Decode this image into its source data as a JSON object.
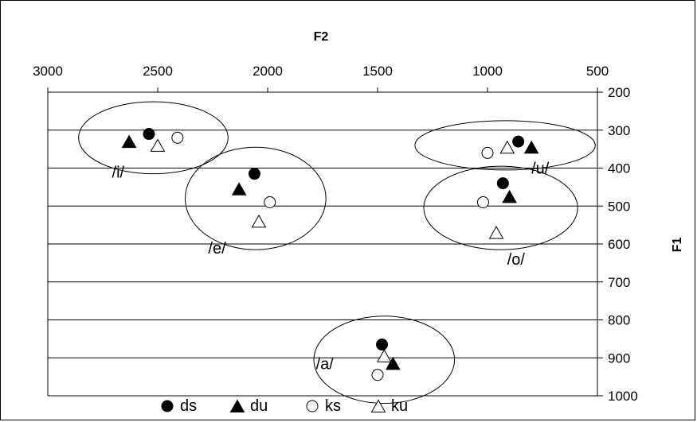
{
  "chart_data": {
    "type": "scatter",
    "title": "",
    "xlabel": "F2",
    "ylabel": "F1",
    "xlim": [
      3000,
      500
    ],
    "ylim": [
      200,
      1000
    ],
    "x_reversed": true,
    "y_reversed": true,
    "x_ticks": [
      3000,
      2500,
      2000,
      1500,
      1000,
      500
    ],
    "y_ticks": [
      200,
      300,
      400,
      500,
      600,
      700,
      800,
      900,
      1000
    ],
    "grid": "horizontal",
    "legend_position": "bottom",
    "series": [
      {
        "name": "ds",
        "marker": "filled-circle",
        "points": [
          {
            "x": 2540,
            "y": 310
          },
          {
            "x": 2060,
            "y": 415
          },
          {
            "x": 1480,
            "y": 865
          },
          {
            "x": 930,
            "y": 440
          },
          {
            "x": 860,
            "y": 330
          }
        ]
      },
      {
        "name": "du",
        "marker": "filled-triangle",
        "points": [
          {
            "x": 2630,
            "y": 330
          },
          {
            "x": 2130,
            "y": 455
          },
          {
            "x": 1430,
            "y": 915
          },
          {
            "x": 900,
            "y": 475
          },
          {
            "x": 800,
            "y": 345
          }
        ]
      },
      {
        "name": "ks",
        "marker": "open-circle",
        "points": [
          {
            "x": 2410,
            "y": 320
          },
          {
            "x": 1990,
            "y": 490
          },
          {
            "x": 1500,
            "y": 945
          },
          {
            "x": 1020,
            "y": 490
          },
          {
            "x": 1000,
            "y": 360
          }
        ]
      },
      {
        "name": "ku",
        "marker": "open-triangle",
        "points": [
          {
            "x": 2500,
            "y": 340
          },
          {
            "x": 2040,
            "y": 540
          },
          {
            "x": 1470,
            "y": 895
          },
          {
            "x": 960,
            "y": 570
          },
          {
            "x": 910,
            "y": 345
          }
        ]
      }
    ],
    "annotations": [
      {
        "text": "/i/",
        "x": 2680,
        "y": 410
      },
      {
        "text": "/e/",
        "x": 2230,
        "y": 610
      },
      {
        "text": "/a/",
        "x": 1740,
        "y": 915
      },
      {
        "text": "/o/",
        "x": 870,
        "y": 640
      },
      {
        "text": "/u/",
        "x": 760,
        "y": 400
      }
    ],
    "groups": [
      {
        "label": "/i/",
        "cx": 2520,
        "cy": 320,
        "rx": 340,
        "ry": 95
      },
      {
        "label": "/e/",
        "cx": 2055,
        "cy": 480,
        "rx": 320,
        "ry": 135
      },
      {
        "label": "/a/",
        "cx": 1470,
        "cy": 905,
        "rx": 320,
        "ry": 115
      },
      {
        "label": "/o/",
        "cx": 940,
        "cy": 505,
        "rx": 350,
        "ry": 110
      },
      {
        "label": "/u/",
        "cx": 920,
        "cy": 340,
        "rx": 410,
        "ry": 65
      }
    ]
  }
}
